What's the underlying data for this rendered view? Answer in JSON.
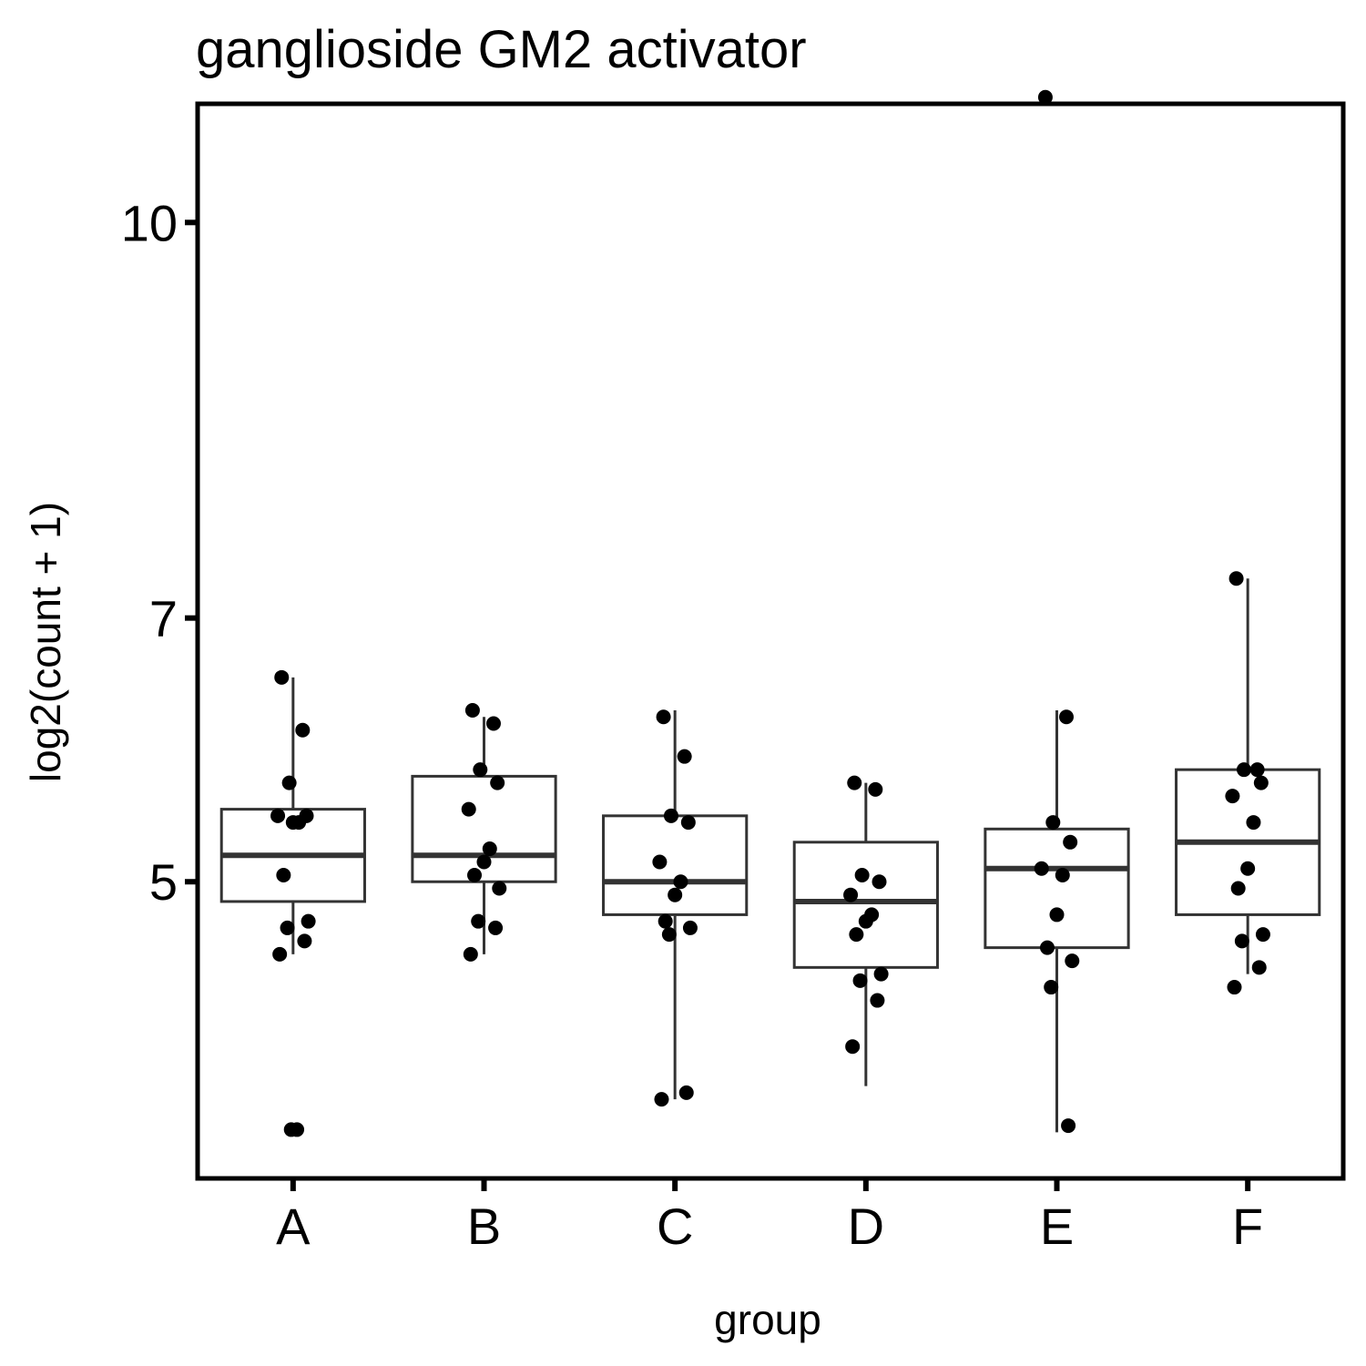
{
  "chart_data": {
    "type": "boxplot",
    "title": "ganglioside GM2 activator",
    "xlabel": "group",
    "ylabel": "log2(count + 1)",
    "ylim": [
      2.75,
      10.9
    ],
    "y_ticks": [
      5,
      7,
      10
    ],
    "y_tick_labels": [
      "5",
      "7",
      "10"
    ],
    "categories": [
      "A",
      "B",
      "C",
      "D",
      "E",
      "F"
    ],
    "grid": false,
    "colors": {
      "box": "#333333",
      "median": "#333333",
      "point": "#000000",
      "frame": "#000000"
    },
    "boxes": [
      {
        "group": "A",
        "min": 4.45,
        "q1": 4.85,
        "median": 5.2,
        "q3": 5.55,
        "max": 6.55
      },
      {
        "group": "B",
        "min": 4.45,
        "q1": 5.0,
        "median": 5.2,
        "q3": 5.8,
        "max": 6.25
      },
      {
        "group": "C",
        "min": 3.35,
        "q1": 4.75,
        "median": 5.0,
        "q3": 5.5,
        "max": 6.3
      },
      {
        "group": "D",
        "min": 3.45,
        "q1": 4.35,
        "median": 4.85,
        "q3": 5.3,
        "max": 5.75
      },
      {
        "group": "E",
        "min": 3.1,
        "q1": 4.5,
        "median": 5.1,
        "q3": 5.4,
        "max": 6.3
      },
      {
        "group": "F",
        "min": 4.3,
        "q1": 4.75,
        "median": 5.3,
        "q3": 5.85,
        "max": 7.3
      }
    ],
    "points": [
      {
        "group": "A",
        "values": [
          6.55,
          6.15,
          5.75,
          5.5,
          5.5,
          5.45,
          5.45,
          5.05,
          4.7,
          4.65,
          4.55,
          4.45,
          3.12,
          3.12
        ]
      },
      {
        "group": "B",
        "values": [
          6.3,
          6.2,
          5.85,
          5.75,
          5.55,
          5.25,
          5.15,
          5.05,
          4.95,
          4.7,
          4.65,
          4.45
        ]
      },
      {
        "group": "C",
        "values": [
          6.25,
          5.95,
          5.5,
          5.45,
          5.15,
          5.0,
          4.9,
          4.7,
          4.65,
          4.6,
          3.4,
          3.35
        ]
      },
      {
        "group": "D",
        "values": [
          5.75,
          5.7,
          5.05,
          5.0,
          4.9,
          4.75,
          4.7,
          4.6,
          4.3,
          4.25,
          4.1,
          3.75
        ]
      },
      {
        "group": "E",
        "values": [
          10.95,
          6.25,
          5.45,
          5.3,
          5.1,
          5.05,
          4.75,
          4.5,
          4.4,
          4.2,
          3.15
        ]
      },
      {
        "group": "F",
        "values": [
          7.3,
          5.85,
          5.85,
          5.75,
          5.65,
          5.45,
          5.1,
          4.95,
          4.6,
          4.55,
          4.35,
          4.2
        ]
      }
    ]
  }
}
